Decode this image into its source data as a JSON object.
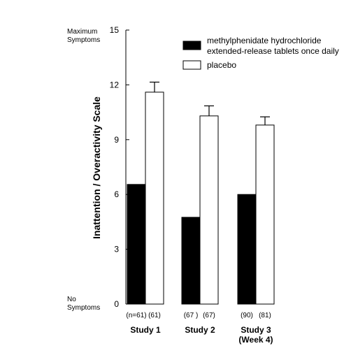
{
  "chart_data": {
    "type": "bar",
    "ylabel": "Inattention / Overactivity Scale",
    "ylim": [
      0,
      15
    ],
    "yticks": [
      "0",
      "3",
      "6",
      "9",
      "12",
      "15"
    ],
    "top_annotation": [
      "Maximum",
      "Symptoms"
    ],
    "bottom_annotation": [
      "No",
      "Symptoms"
    ],
    "categories": [
      [
        "Study 1"
      ],
      [
        "Study 2"
      ],
      [
        "Study 3",
        "(Week 4)"
      ]
    ],
    "sample_sizes": [
      [
        "(n=61)",
        "(61)"
      ],
      [
        "(67 )",
        "(67)"
      ],
      [
        "(90)",
        "(81)"
      ]
    ],
    "series": [
      {
        "name_lines": [
          "methylphenidate hydrochloride",
          "extended-release tablets once daily"
        ],
        "color": "#000000",
        "values": [
          6.55,
          4.75,
          6.0
        ]
      },
      {
        "name_lines": [
          "placebo"
        ],
        "color": "#ffffff",
        "values": [
          11.6,
          10.3,
          9.8
        ],
        "error_top": [
          12.15,
          10.85,
          10.25
        ]
      }
    ],
    "legend_position": "top-right",
    "grid": false
  }
}
